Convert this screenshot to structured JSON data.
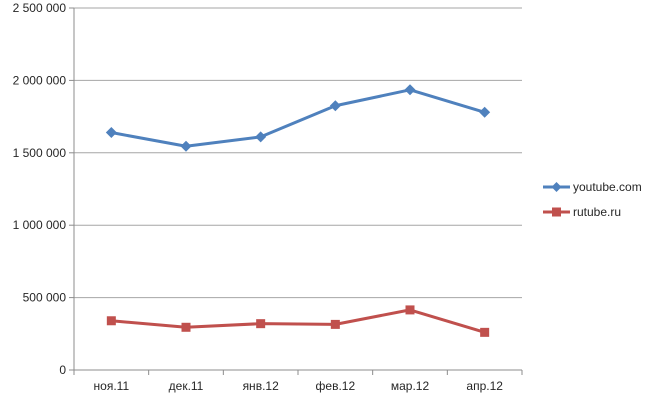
{
  "chart_data": {
    "type": "line",
    "title": "",
    "xlabel": "",
    "ylabel": "",
    "categories": [
      "ноя.11",
      "дек.11",
      "янв.12",
      "фев.12",
      "мар.12",
      "апр.12"
    ],
    "series": [
      {
        "name": "youtube.com",
        "color": "#4F81BD",
        "marker": "diamond",
        "values": [
          1640000,
          1545000,
          1610000,
          1825000,
          1935000,
          1780000
        ]
      },
      {
        "name": "rutube.ru",
        "color": "#C0504D",
        "marker": "square",
        "values": [
          340000,
          295000,
          320000,
          315000,
          415000,
          260000
        ]
      }
    ],
    "ylim": [
      0,
      2500000
    ],
    "ytick_step": 500000,
    "ytick_labels": [
      "0",
      "500 000",
      "1 000 000",
      "1 500 000",
      "2 000 000",
      "2 500 000"
    ],
    "grid": true,
    "legend_position": "right"
  },
  "style": {
    "background": "#ffffff",
    "grid_color": "#a6a6a6",
    "axis_color": "#8c8c8c",
    "text_color": "#262626"
  }
}
